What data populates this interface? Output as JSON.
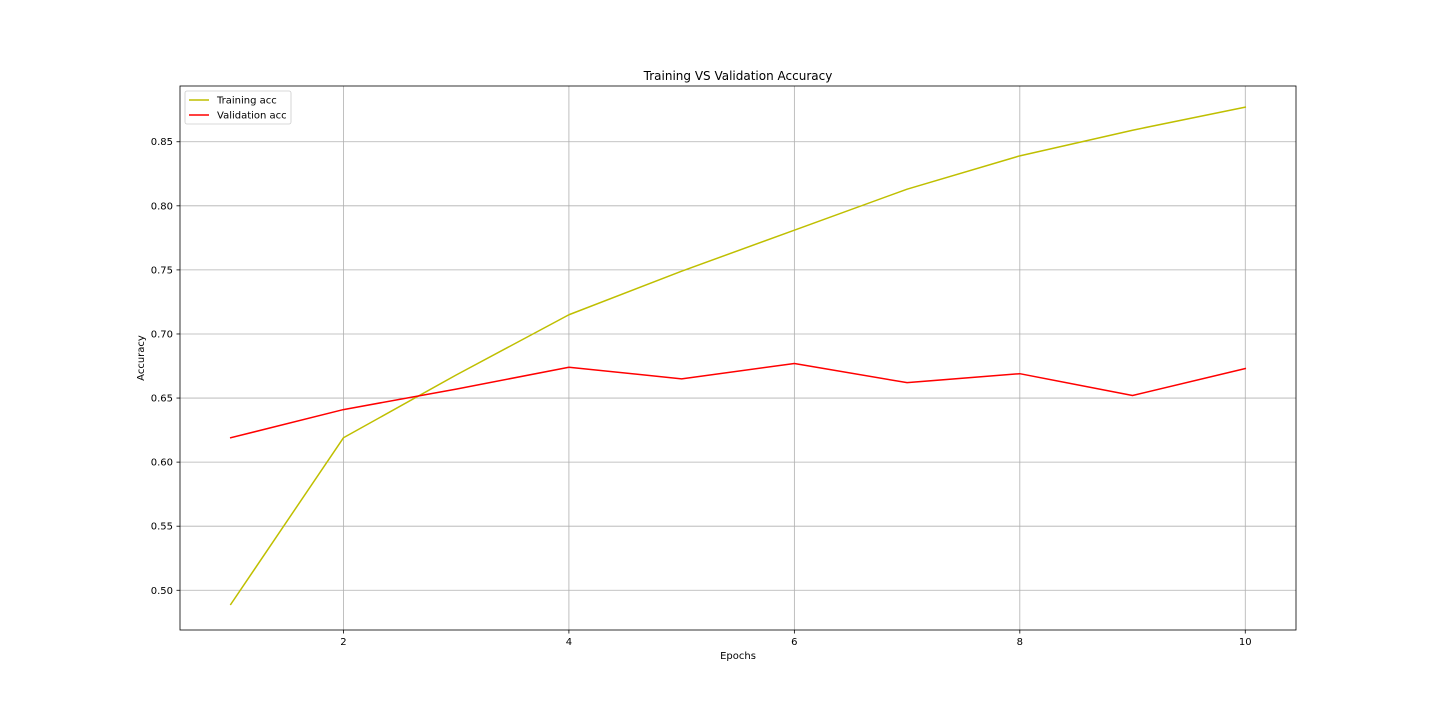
{
  "chart_data": {
    "type": "line",
    "title": "Training VS Validation Accuracy",
    "xlabel": "Epochs",
    "ylabel": "Accuracy",
    "x": [
      1,
      2,
      3,
      4,
      5,
      6,
      7,
      8,
      9,
      10
    ],
    "xlim": [
      0.55,
      10.45
    ],
    "ylim": [
      0.469,
      0.8935
    ],
    "xticks": [
      2,
      4,
      6,
      8,
      10
    ],
    "yticks": [
      0.5,
      0.55,
      0.6,
      0.65,
      0.7,
      0.75,
      0.8,
      0.85
    ],
    "xtick_labels": [
      "2",
      "4",
      "6",
      "8",
      "10"
    ],
    "ytick_labels": [
      "0.50",
      "0.55",
      "0.60",
      "0.65",
      "0.70",
      "0.75",
      "0.80",
      "0.85"
    ],
    "grid": true,
    "legend_position": "top-left",
    "series": [
      {
        "name": "Training acc",
        "color": "#bfbf00",
        "values": [
          0.489,
          0.619,
          0.668,
          0.715,
          0.749,
          0.781,
          0.813,
          0.839,
          0.859,
          0.877
        ]
      },
      {
        "name": "Validation acc",
        "color": "#ff0000",
        "values": [
          0.619,
          0.641,
          0.657,
          0.674,
          0.665,
          0.677,
          0.662,
          0.669,
          0.652,
          0.673
        ]
      }
    ]
  }
}
